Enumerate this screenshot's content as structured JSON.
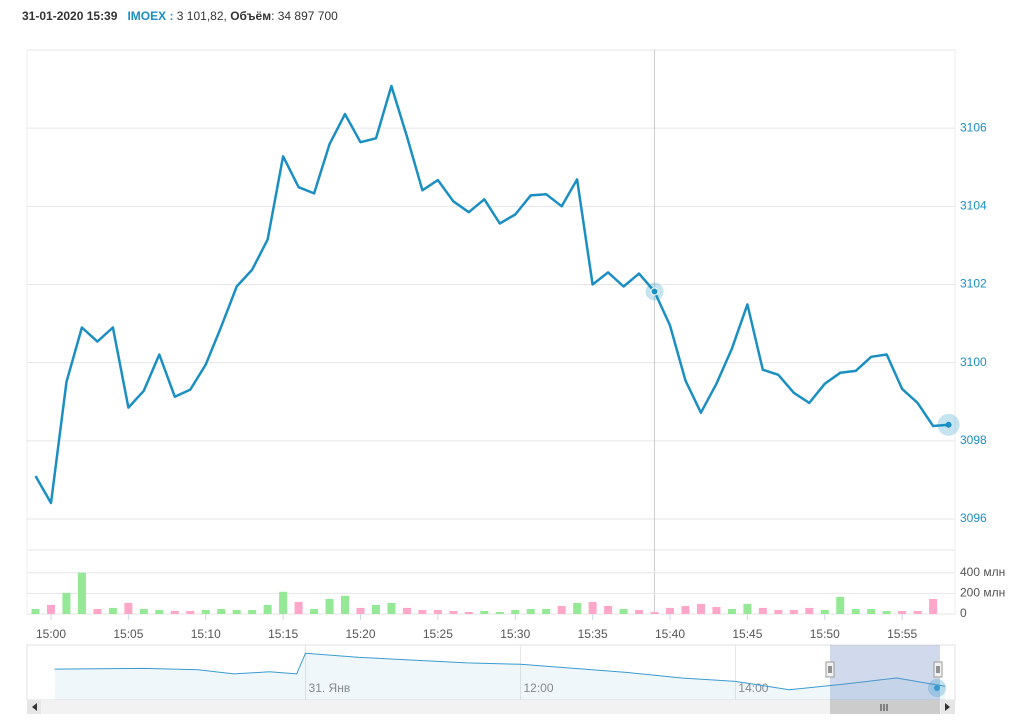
{
  "header": {
    "date": "31-01-2020 15:39",
    "symbol": "IMOEX :",
    "price": "3 101,82,",
    "volume_label": "Объём",
    "volume": ": 34 897 700"
  },
  "chart_data": [
    {
      "type": "line",
      "color": "#1b8fc2",
      "crosshair": "15:39",
      "x": [
        "14:59",
        "15:00",
        "15:01",
        "15:02",
        "15:03",
        "15:04",
        "15:05",
        "15:06",
        "15:07",
        "15:08",
        "15:09",
        "15:10",
        "15:11",
        "15:12",
        "15:13",
        "15:14",
        "15:15",
        "15:16",
        "15:17",
        "15:18",
        "15:19",
        "15:20",
        "15:21",
        "15:22",
        "15:23",
        "15:24",
        "15:25",
        "15:26",
        "15:27",
        "15:28",
        "15:29",
        "15:30",
        "15:31",
        "15:32",
        "15:33",
        "15:34",
        "15:35",
        "15:36",
        "15:37",
        "15:38",
        "15:39",
        "15:40",
        "15:41",
        "15:42",
        "15:43",
        "15:44",
        "15:45",
        "15:46",
        "15:47",
        "15:48",
        "15:49",
        "15:50",
        "15:51",
        "15:52",
        "15:53",
        "15:54",
        "15:55",
        "15:56",
        "15:57",
        "15:58"
      ],
      "values": [
        3097.1,
        3096.41,
        3099.51,
        3100.9,
        3100.54,
        3100.9,
        3098.85,
        3099.28,
        3100.21,
        3099.13,
        3099.31,
        3099.95,
        3100.92,
        3101.95,
        3102.38,
        3103.15,
        3105.28,
        3104.49,
        3104.33,
        3105.59,
        3106.36,
        3105.64,
        3105.74,
        3107.08,
        3105.79,
        3104.41,
        3104.67,
        3104.13,
        3103.85,
        3104.18,
        3103.56,
        3103.79,
        3104.28,
        3104.31,
        3104.0,
        3104.69,
        3102.0,
        3102.31,
        3101.95,
        3102.28,
        3101.82,
        3100.95,
        3099.54,
        3098.72,
        3099.46,
        3100.36,
        3101.49,
        3099.82,
        3099.69,
        3099.23,
        3098.97,
        3099.46,
        3099.74,
        3099.79,
        3100.15,
        3100.21,
        3099.33,
        3098.97,
        3098.38,
        3098.41
      ],
      "xlim": [
        "14:58:27",
        "15:58:25"
      ],
      "ylim": [
        3096,
        3108
      ],
      "yticks": [
        3096,
        3098,
        3100,
        3102,
        3104,
        3106
      ],
      "grid": true
    },
    {
      "type": "bar",
      "x": [
        "14:59",
        "15:00",
        "15:01",
        "15:02",
        "15:03",
        "15:04",
        "15:05",
        "15:06",
        "15:07",
        "15:08",
        "15:09",
        "15:10",
        "15:11",
        "15:12",
        "15:13",
        "15:14",
        "15:15",
        "15:16",
        "15:17",
        "15:18",
        "15:19",
        "15:20",
        "15:21",
        "15:22",
        "15:23",
        "15:24",
        "15:25",
        "15:26",
        "15:27",
        "15:28",
        "15:29",
        "15:30",
        "15:31",
        "15:32",
        "15:33",
        "15:34",
        "15:35",
        "15:36",
        "15:37",
        "15:38",
        "15:39",
        "15:40",
        "15:41",
        "15:42",
        "15:43",
        "15:44",
        "15:45",
        "15:46",
        "15:47",
        "15:48",
        "15:49",
        "15:50",
        "15:51",
        "15:52",
        "15:53",
        "15:54",
        "15:55",
        "15:56",
        "15:57"
      ],
      "values": [
        49,
        88,
        205,
        400,
        49,
        59,
        107,
        49,
        39,
        29,
        29,
        39,
        49,
        39,
        39,
        88,
        215,
        117,
        49,
        146,
        176,
        59,
        88,
        107,
        59,
        39,
        39,
        29,
        20,
        29,
        20,
        39,
        49,
        49,
        78,
        107,
        117,
        78,
        49,
        39,
        20,
        59,
        78,
        98,
        68,
        49,
        98,
        59,
        39,
        39,
        59,
        39,
        166,
        49,
        49,
        29,
        29,
        29,
        146
      ],
      "colors": [
        "#95e895",
        "#ffa6c9",
        "#95e895",
        "#95e895",
        "#ffa6c9",
        "#95e895",
        "#ffa6c9",
        "#95e895",
        "#95e895",
        "#ffa6c9",
        "#ffa6c9",
        "#95e895",
        "#95e895",
        "#95e895",
        "#95e895",
        "#95e895",
        "#95e895",
        "#ffa6c9",
        "#95e895",
        "#95e895",
        "#95e895",
        "#ffa6c9",
        "#95e895",
        "#95e895",
        "#ffa6c9",
        "#ffa6c9",
        "#ffa6c9",
        "#ffa6c9",
        "#ffa6c9",
        "#95e895",
        "#95e895",
        "#95e895",
        "#95e895",
        "#95e895",
        "#ffa6c9",
        "#95e895",
        "#ffa6c9",
        "#ffa6c9",
        "#95e895",
        "#ffa6c9",
        "#ffa6c9",
        "#ffa6c9",
        "#ffa6c9",
        "#ffa6c9",
        "#ffa6c9",
        "#95e895",
        "#95e895",
        "#ffa6c9",
        "#ffa6c9",
        "#ffa6c9",
        "#ffa6c9",
        "#95e895",
        "#95e895",
        "#95e895",
        "#95e895",
        "#95e895",
        "#ffa6c9",
        "#ffa6c9",
        "#ffa6c9"
      ],
      "xlim": [
        "14:58:27",
        "15:58:25"
      ],
      "ylim": [
        0,
        620
      ],
      "yticks": [
        0,
        {
          "value": 200,
          "label": "200 млн"
        },
        {
          "value": 400,
          "label": "400 млн"
        }
      ],
      "xticks": [
        "15:00",
        "15:05",
        "15:10",
        "15:15",
        "15:20",
        "15:25",
        "15:30",
        "15:35",
        "15:40",
        "15:45",
        "15:50",
        "15:55"
      ],
      "grid": true
    },
    {
      "type": "area",
      "color": "#3a9bd0",
      "x": [
        "07:40",
        "08:30",
        "09:00",
        "09:20",
        "09:40",
        "09:55",
        "10:00",
        "10:30",
        "11:00",
        "11:30",
        "12:00",
        "12:30",
        "13:00",
        "13:30",
        "14:00",
        "14:30",
        "15:00",
        "15:30",
        "15:57"
      ],
      "values": [
        3123,
        3124,
        3122,
        3116,
        3119,
        3116,
        3146,
        3140,
        3136,
        3132,
        3130,
        3124,
        3118,
        3110,
        3105,
        3093,
        3101,
        3110,
        3098
      ],
      "xlim": [
        "07:34",
        "15:57"
      ],
      "ylim": [
        3078,
        3158
      ],
      "xticks": [
        {
          "value": "10:00",
          "label": "31. Янв"
        },
        "12:00",
        "14:00"
      ]
    }
  ]
}
